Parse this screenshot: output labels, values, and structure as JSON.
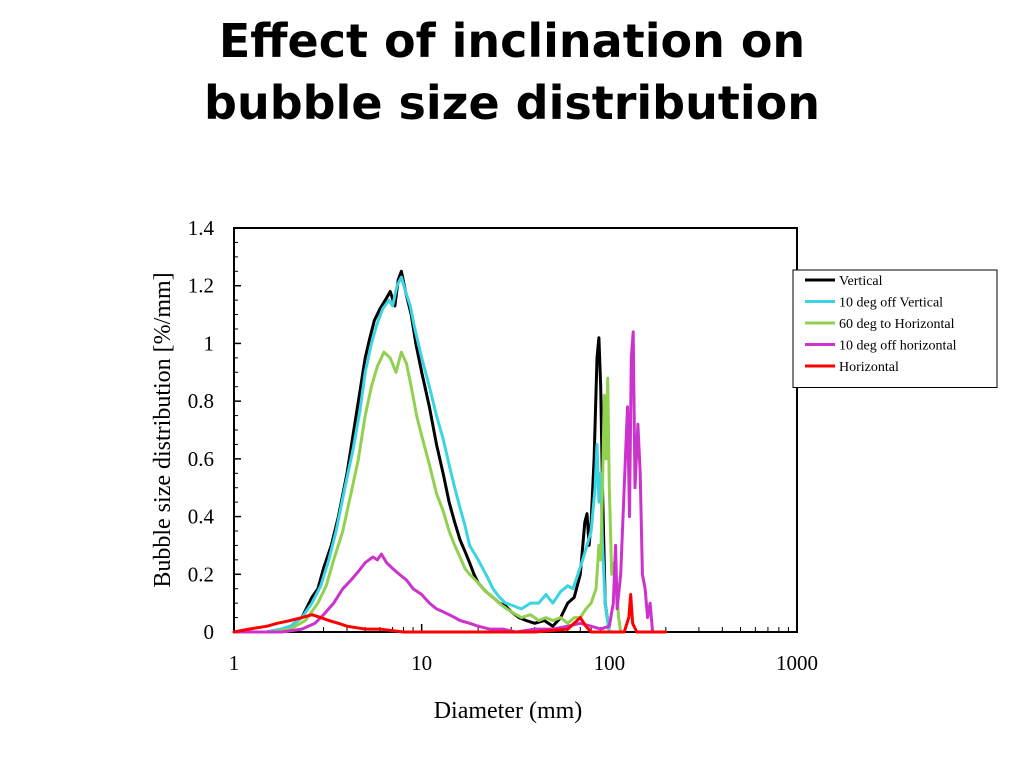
{
  "slide": {
    "title_line1": "Effect of inclination on",
    "title_line2": "bubble size distribution"
  },
  "chart_data": {
    "type": "line",
    "xlabel": "Diameter (mm)",
    "ylabel": "Bubble size distribution [%/mm]",
    "xscale": "log",
    "xlim": [
      1,
      1000
    ],
    "ylim": [
      0,
      1.4
    ],
    "x_ticks": [
      "1",
      "10",
      "100",
      "1000"
    ],
    "y_ticks": [
      "0",
      "0.2",
      "0.4",
      "0.6",
      "0.8",
      "1",
      "1.2",
      "1.4"
    ],
    "grid": false,
    "legend_position": "right",
    "series": [
      {
        "name": "Vertical",
        "color": "#000000",
        "points": [
          [
            1,
            0
          ],
          [
            1.5,
            0
          ],
          [
            1.8,
            0.01
          ],
          [
            2,
            0.02
          ],
          [
            2.3,
            0.05
          ],
          [
            2.6,
            0.12
          ],
          [
            2.8,
            0.15
          ],
          [
            3,
            0.22
          ],
          [
            3.3,
            0.3
          ],
          [
            3.6,
            0.4
          ],
          [
            4,
            0.55
          ],
          [
            4.3,
            0.68
          ],
          [
            4.6,
            0.8
          ],
          [
            5,
            0.95
          ],
          [
            5.3,
            1.02
          ],
          [
            5.6,
            1.08
          ],
          [
            6,
            1.12
          ],
          [
            6.4,
            1.15
          ],
          [
            6.8,
            1.18
          ],
          [
            7.2,
            1.13
          ],
          [
            7.5,
            1.22
          ],
          [
            7.8,
            1.25
          ],
          [
            8.2,
            1.18
          ],
          [
            8.8,
            1.1
          ],
          [
            9.3,
            1.0
          ],
          [
            10,
            0.9
          ],
          [
            11,
            0.78
          ],
          [
            12,
            0.65
          ],
          [
            13,
            0.55
          ],
          [
            14,
            0.45
          ],
          [
            15,
            0.38
          ],
          [
            16,
            0.32
          ],
          [
            17,
            0.28
          ],
          [
            18,
            0.24
          ],
          [
            19,
            0.2
          ],
          [
            20,
            0.17
          ],
          [
            22,
            0.14
          ],
          [
            24,
            0.12
          ],
          [
            26,
            0.1
          ],
          [
            28,
            0.09
          ],
          [
            30,
            0.07
          ],
          [
            33,
            0.05
          ],
          [
            36,
            0.04
          ],
          [
            40,
            0.03
          ],
          [
            45,
            0.04
          ],
          [
            50,
            0.02
          ],
          [
            55,
            0.05
          ],
          [
            60,
            0.1
          ],
          [
            65,
            0.12
          ],
          [
            70,
            0.2
          ],
          [
            74,
            0.38
          ],
          [
            76,
            0.41
          ],
          [
            78,
            0.3
          ],
          [
            80,
            0.38
          ],
          [
            83,
            0.6
          ],
          [
            86,
            0.95
          ],
          [
            88,
            1.02
          ],
          [
            90,
            0.85
          ],
          [
            92,
            0.5
          ],
          [
            95,
            0.1
          ],
          [
            100,
            0
          ]
        ]
      },
      {
        "name": "10 deg off Vertical",
        "color": "#3bd4e2",
        "points": [
          [
            1,
            0
          ],
          [
            1.5,
            0
          ],
          [
            1.8,
            0.01
          ],
          [
            2,
            0.02
          ],
          [
            2.3,
            0.05
          ],
          [
            2.6,
            0.1
          ],
          [
            2.9,
            0.16
          ],
          [
            3.2,
            0.25
          ],
          [
            3.5,
            0.35
          ],
          [
            3.9,
            0.5
          ],
          [
            4.3,
            0.63
          ],
          [
            4.7,
            0.77
          ],
          [
            5,
            0.9
          ],
          [
            5.4,
            1.0
          ],
          [
            5.8,
            1.07
          ],
          [
            6.2,
            1.12
          ],
          [
            6.7,
            1.15
          ],
          [
            7,
            1.13
          ],
          [
            7.4,
            1.2
          ],
          [
            7.8,
            1.23
          ],
          [
            8.2,
            1.18
          ],
          [
            8.7,
            1.13
          ],
          [
            9.2,
            1.05
          ],
          [
            10,
            0.95
          ],
          [
            11,
            0.85
          ],
          [
            12,
            0.75
          ],
          [
            13,
            0.67
          ],
          [
            14,
            0.58
          ],
          [
            15,
            0.5
          ],
          [
            16,
            0.43
          ],
          [
            17,
            0.37
          ],
          [
            18,
            0.3
          ],
          [
            20,
            0.25
          ],
          [
            22,
            0.2
          ],
          [
            24,
            0.15
          ],
          [
            26,
            0.12
          ],
          [
            28,
            0.1
          ],
          [
            31,
            0.09
          ],
          [
            34,
            0.08
          ],
          [
            38,
            0.1
          ],
          [
            42,
            0.1
          ],
          [
            46,
            0.13
          ],
          [
            50,
            0.1
          ],
          [
            55,
            0.14
          ],
          [
            60,
            0.16
          ],
          [
            64,
            0.15
          ],
          [
            68,
            0.2
          ],
          [
            72,
            0.25
          ],
          [
            76,
            0.3
          ],
          [
            80,
            0.35
          ],
          [
            84,
            0.5
          ],
          [
            86,
            0.65
          ],
          [
            88,
            0.45
          ],
          [
            90,
            0.55
          ],
          [
            92,
            0.3
          ],
          [
            95,
            0.1
          ],
          [
            100,
            0
          ]
        ]
      },
      {
        "name": "60 deg to Horizontal",
        "color": "#92d050",
        "points": [
          [
            1,
            0
          ],
          [
            1.6,
            0
          ],
          [
            2,
            0.01
          ],
          [
            2.4,
            0.04
          ],
          [
            2.8,
            0.1
          ],
          [
            3.1,
            0.16
          ],
          [
            3.4,
            0.25
          ],
          [
            3.8,
            0.35
          ],
          [
            4.2,
            0.48
          ],
          [
            4.6,
            0.6
          ],
          [
            5,
            0.75
          ],
          [
            5.4,
            0.85
          ],
          [
            5.8,
            0.92
          ],
          [
            6.3,
            0.97
          ],
          [
            6.8,
            0.95
          ],
          [
            7.3,
            0.9
          ],
          [
            7.8,
            0.97
          ],
          [
            8.3,
            0.93
          ],
          [
            8.8,
            0.85
          ],
          [
            9.4,
            0.75
          ],
          [
            10,
            0.68
          ],
          [
            11,
            0.58
          ],
          [
            12,
            0.48
          ],
          [
            13,
            0.42
          ],
          [
            14,
            0.35
          ],
          [
            15,
            0.3
          ],
          [
            16,
            0.26
          ],
          [
            17,
            0.22
          ],
          [
            18,
            0.2
          ],
          [
            20,
            0.17
          ],
          [
            22,
            0.14
          ],
          [
            24,
            0.12
          ],
          [
            27,
            0.09
          ],
          [
            30,
            0.07
          ],
          [
            34,
            0.05
          ],
          [
            38,
            0.06
          ],
          [
            42,
            0.04
          ],
          [
            46,
            0.05
          ],
          [
            50,
            0.04
          ],
          [
            55,
            0.05
          ],
          [
            60,
            0.03
          ],
          [
            65,
            0.05
          ],
          [
            70,
            0.05
          ],
          [
            75,
            0.08
          ],
          [
            80,
            0.1
          ],
          [
            85,
            0.15
          ],
          [
            88,
            0.3
          ],
          [
            90,
            0.25
          ],
          [
            92,
            0.5
          ],
          [
            94,
            0.82
          ],
          [
            96,
            0.6
          ],
          [
            98,
            0.88
          ],
          [
            100,
            0.5
          ],
          [
            103,
            0.2
          ],
          [
            105,
            0.24
          ],
          [
            108,
            0.22
          ],
          [
            112,
            0.05
          ],
          [
            115,
            0
          ]
        ]
      },
      {
        "name": "10 deg off horizontal",
        "color": "#cc33cc",
        "points": [
          [
            1,
            0
          ],
          [
            1.8,
            0
          ],
          [
            2.3,
            0.01
          ],
          [
            2.7,
            0.03
          ],
          [
            3,
            0.06
          ],
          [
            3.4,
            0.1
          ],
          [
            3.8,
            0.15
          ],
          [
            4.2,
            0.18
          ],
          [
            4.6,
            0.21
          ],
          [
            5,
            0.24
          ],
          [
            5.5,
            0.26
          ],
          [
            5.8,
            0.25
          ],
          [
            6.1,
            0.27
          ],
          [
            6.5,
            0.24
          ],
          [
            7,
            0.22
          ],
          [
            7.6,
            0.2
          ],
          [
            8.3,
            0.18
          ],
          [
            9,
            0.15
          ],
          [
            10,
            0.13
          ],
          [
            11,
            0.1
          ],
          [
            12,
            0.08
          ],
          [
            13,
            0.07
          ],
          [
            14,
            0.06
          ],
          [
            15,
            0.05
          ],
          [
            16,
            0.04
          ],
          [
            18,
            0.03
          ],
          [
            20,
            0.02
          ],
          [
            23,
            0.01
          ],
          [
            27,
            0.01
          ],
          [
            32,
            0
          ],
          [
            40,
            0.01
          ],
          [
            50,
            0.01
          ],
          [
            60,
            0.02
          ],
          [
            70,
            0.03
          ],
          [
            80,
            0.02
          ],
          [
            90,
            0.01
          ],
          [
            100,
            0.02
          ],
          [
            105,
            0.1
          ],
          [
            108,
            0.3
          ],
          [
            110,
            0.08
          ],
          [
            115,
            0.2
          ],
          [
            120,
            0.5
          ],
          [
            125,
            0.78
          ],
          [
            128,
            0.4
          ],
          [
            131,
            0.95
          ],
          [
            134,
            1.04
          ],
          [
            137,
            0.5
          ],
          [
            142,
            0.72
          ],
          [
            146,
            0.55
          ],
          [
            150,
            0.2
          ],
          [
            155,
            0.15
          ],
          [
            160,
            0.05
          ],
          [
            165,
            0.1
          ],
          [
            170,
            0
          ]
        ]
      },
      {
        "name": "Horizontal",
        "color": "#ff0000",
        "points": [
          [
            1,
            0
          ],
          [
            1.2,
            0.01
          ],
          [
            1.5,
            0.02
          ],
          [
            1.7,
            0.03
          ],
          [
            2,
            0.04
          ],
          [
            2.3,
            0.05
          ],
          [
            2.6,
            0.06
          ],
          [
            2.9,
            0.05
          ],
          [
            3.2,
            0.04
          ],
          [
            3.6,
            0.03
          ],
          [
            4,
            0.02
          ],
          [
            5,
            0.01
          ],
          [
            6,
            0.01
          ],
          [
            8,
            0
          ],
          [
            10,
            0
          ],
          [
            20,
            0
          ],
          [
            40,
            0
          ],
          [
            60,
            0.01
          ],
          [
            70,
            0.05
          ],
          [
            75,
            0.02
          ],
          [
            80,
            0
          ],
          [
            100,
            0
          ],
          [
            120,
            0
          ],
          [
            127,
            0.05
          ],
          [
            130,
            0.13
          ],
          [
            133,
            0.03
          ],
          [
            140,
            0
          ],
          [
            200,
            0
          ]
        ]
      }
    ]
  }
}
